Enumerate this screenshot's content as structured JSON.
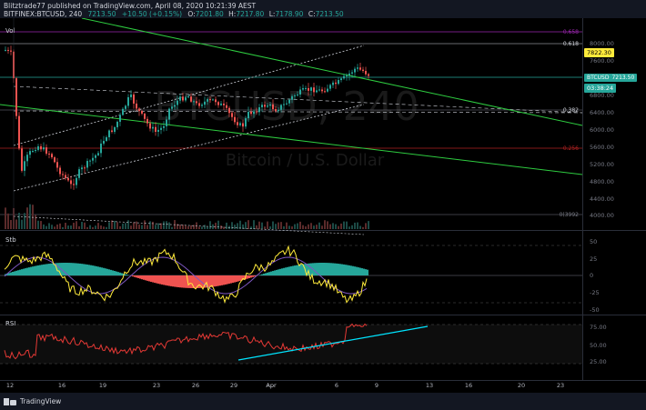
{
  "header": {
    "line1": "Blitztrade77 published on TradingView.com, April 08, 2020 10:21:39 AEST",
    "symbol": "BITFINEX:BTCUSD, 240",
    "price": "7213.50",
    "change": "+10.50 (+0.15%)",
    "open_label": "O:",
    "open": "7201.80",
    "high_label": "H:",
    "high": "7217.80",
    "low_label": "L:",
    "low": "7178.90",
    "close_label": "C:",
    "close": "7213.50"
  },
  "main": {
    "vol_label": "Vol",
    "watermark_title": "BTCUSD, 240",
    "watermark_sub": "Bitcoin / U.S. Dollar",
    "fib_labels": [
      "0.658",
      "0.618",
      "0.382",
      "0.256",
      "0(3992"
    ],
    "price_axis": [
      "8000.00",
      "7600.00",
      "7200.00",
      "6800.00",
      "6400.00",
      "6000.00",
      "5600.00",
      "5200.00",
      "4800.00",
      "4400.00",
      "4000.00"
    ],
    "price_badge_yellow": "7822.30",
    "price_badge_symbol": "BTCUSD",
    "price_badge_value": "7213.50",
    "countdown": "03:38:24"
  },
  "stoch": {
    "label": "Stb",
    "axis": [
      "50",
      "25",
      "0",
      "-25",
      "-50"
    ]
  },
  "rsi": {
    "label": "RSI",
    "axis": [
      "75.00",
      "50.00",
      "25.00"
    ]
  },
  "time_axis": [
    "12",
    "16",
    "19",
    "23",
    "26",
    "29",
    "Apr",
    "6",
    "9",
    "13",
    "16",
    "20",
    "23"
  ],
  "footer": {
    "brand": "TradingView"
  },
  "colors": {
    "bull": "#26a69a",
    "bear": "#ef5350",
    "trend": "#2ecc40",
    "fib_gray": "#787b86",
    "fib_red": "#b22222",
    "fib_purple": "#9c27b0",
    "stoch_k": "#ffeb3b",
    "stoch_d": "#7e57c2",
    "rsi": "#e53935",
    "rsi_trend": "#00e5ff"
  }
}
